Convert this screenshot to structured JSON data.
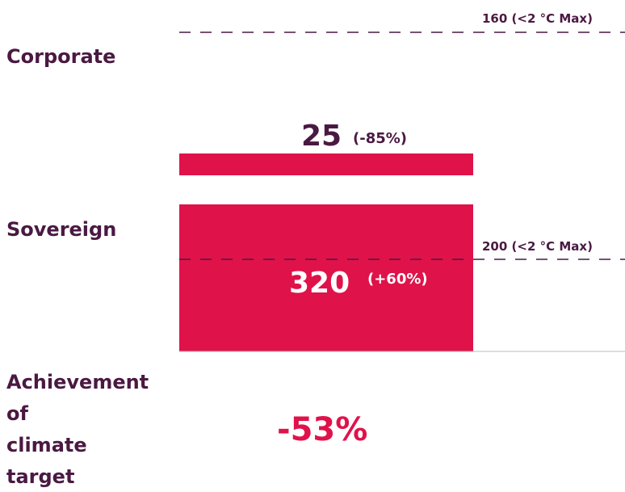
{
  "corporate": {
    "label": "Corporate",
    "value": "25",
    "change": "(-85%)",
    "target": "160 (<2 °C Max)"
  },
  "sovereign": {
    "label": "Sovereign",
    "value": "320",
    "change": "(+60%)",
    "target": "200 (<2 °C Max)"
  },
  "achievement": {
    "label_lines": [
      "Achievement",
      "of",
      "climate",
      "target"
    ],
    "value": "-53%"
  }
}
